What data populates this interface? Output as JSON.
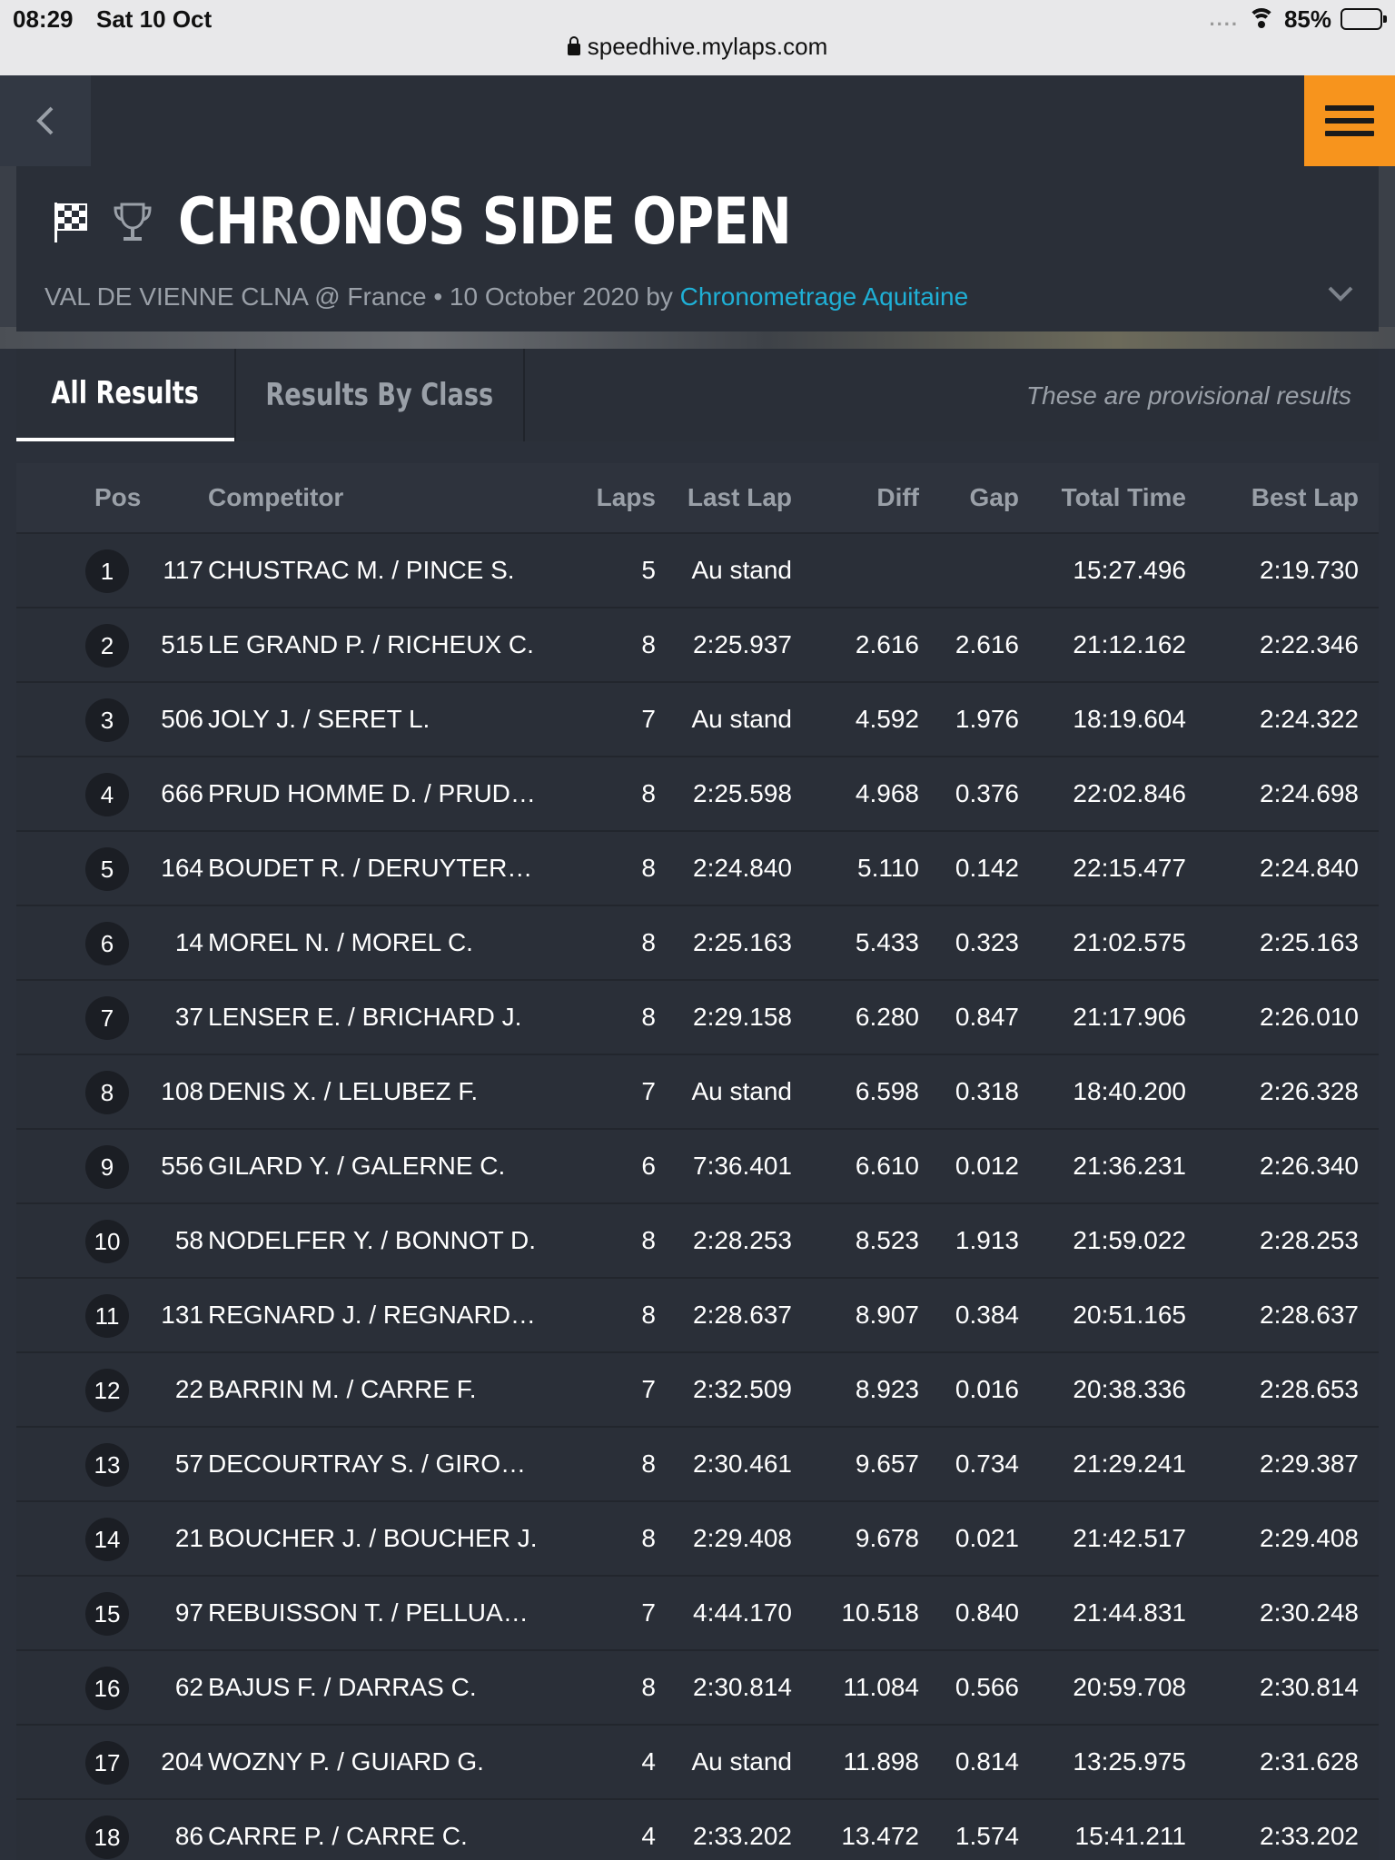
{
  "status_bar": {
    "time": "08:29",
    "date": "Sat 10 Oct",
    "signal_dots": "....",
    "battery": "85%",
    "url": "speedhive.mylaps.com"
  },
  "colors": {
    "accent_orange": "#f7941d",
    "link_cyan": "#1fb0d6",
    "panel_bg": "#2a2f38"
  },
  "event": {
    "title": "CHRONOS SIDE OPEN",
    "subtitle": "VAL DE VIENNE CLNA @ France • 10 October 2020 by ",
    "organizer": "Chronometrage Aquitaine"
  },
  "tabs": {
    "all": "All Results",
    "by_class": "Results By Class",
    "provisional_note": "These are provisional results"
  },
  "table": {
    "headers": {
      "pos": "Pos",
      "competitor": "Competitor",
      "laps": "Laps",
      "last_lap": "Last Lap",
      "diff": "Diff",
      "gap": "Gap",
      "total_time": "Total Time",
      "best_lap": "Best Lap"
    },
    "rows": [
      {
        "pos": "1",
        "num": "117",
        "competitor": "CHUSTRAC M. / PINCE S.",
        "laps": "5",
        "last_lap": "Au stand",
        "diff": "",
        "gap": "",
        "total": "15:27.496",
        "best": "2:19.730"
      },
      {
        "pos": "2",
        "num": "515",
        "competitor": "LE GRAND P. / RICHEUX C.",
        "laps": "8",
        "last_lap": "2:25.937",
        "diff": "2.616",
        "gap": "2.616",
        "total": "21:12.162",
        "best": "2:22.346"
      },
      {
        "pos": "3",
        "num": "506",
        "competitor": "JOLY J. / SERET L.",
        "laps": "7",
        "last_lap": "Au stand",
        "diff": "4.592",
        "gap": "1.976",
        "total": "18:19.604",
        "best": "2:24.322"
      },
      {
        "pos": "4",
        "num": "666",
        "competitor": "PRUD HOMME D. / PRUD…",
        "laps": "8",
        "last_lap": "2:25.598",
        "diff": "4.968",
        "gap": "0.376",
        "total": "22:02.846",
        "best": "2:24.698"
      },
      {
        "pos": "5",
        "num": "164",
        "competitor": "BOUDET R. / DERUYTER…",
        "laps": "8",
        "last_lap": "2:24.840",
        "diff": "5.110",
        "gap": "0.142",
        "total": "22:15.477",
        "best": "2:24.840"
      },
      {
        "pos": "6",
        "num": "14",
        "competitor": "MOREL N. / MOREL C.",
        "laps": "8",
        "last_lap": "2:25.163",
        "diff": "5.433",
        "gap": "0.323",
        "total": "21:02.575",
        "best": "2:25.163"
      },
      {
        "pos": "7",
        "num": "37",
        "competitor": "LENSER E. / BRICHARD J.",
        "laps": "8",
        "last_lap": "2:29.158",
        "diff": "6.280",
        "gap": "0.847",
        "total": "21:17.906",
        "best": "2:26.010"
      },
      {
        "pos": "8",
        "num": "108",
        "competitor": "DENIS X. / LELUBEZ F.",
        "laps": "7",
        "last_lap": "Au stand",
        "diff": "6.598",
        "gap": "0.318",
        "total": "18:40.200",
        "best": "2:26.328"
      },
      {
        "pos": "9",
        "num": "556",
        "competitor": "GILARD Y. / GALERNE C.",
        "laps": "6",
        "last_lap": "7:36.401",
        "diff": "6.610",
        "gap": "0.012",
        "total": "21:36.231",
        "best": "2:26.340"
      },
      {
        "pos": "10",
        "num": "58",
        "competitor": "NODELFER Y. / BONNOT D.",
        "laps": "8",
        "last_lap": "2:28.253",
        "diff": "8.523",
        "gap": "1.913",
        "total": "21:59.022",
        "best": "2:28.253"
      },
      {
        "pos": "11",
        "num": "131",
        "competitor": "REGNARD J. / REGNARD…",
        "laps": "8",
        "last_lap": "2:28.637",
        "diff": "8.907",
        "gap": "0.384",
        "total": "20:51.165",
        "best": "2:28.637"
      },
      {
        "pos": "12",
        "num": "22",
        "competitor": "BARRIN M. / CARRE F.",
        "laps": "7",
        "last_lap": "2:32.509",
        "diff": "8.923",
        "gap": "0.016",
        "total": "20:38.336",
        "best": "2:28.653"
      },
      {
        "pos": "13",
        "num": "57",
        "competitor": "DECOURTRAY S. / GIRO…",
        "laps": "8",
        "last_lap": "2:30.461",
        "diff": "9.657",
        "gap": "0.734",
        "total": "21:29.241",
        "best": "2:29.387"
      },
      {
        "pos": "14",
        "num": "21",
        "competitor": "BOUCHER J. / BOUCHER J.",
        "laps": "8",
        "last_lap": "2:29.408",
        "diff": "9.678",
        "gap": "0.021",
        "total": "21:42.517",
        "best": "2:29.408"
      },
      {
        "pos": "15",
        "num": "97",
        "competitor": "REBUISSON T. / PELLUA…",
        "laps": "7",
        "last_lap": "4:44.170",
        "diff": "10.518",
        "gap": "0.840",
        "total": "21:44.831",
        "best": "2:30.248"
      },
      {
        "pos": "16",
        "num": "62",
        "competitor": "BAJUS F. / DARRAS C.",
        "laps": "8",
        "last_lap": "2:30.814",
        "diff": "11.084",
        "gap": "0.566",
        "total": "20:59.708",
        "best": "2:30.814"
      },
      {
        "pos": "17",
        "num": "204",
        "competitor": "WOZNY P. / GUIARD G.",
        "laps": "4",
        "last_lap": "Au stand",
        "diff": "11.898",
        "gap": "0.814",
        "total": "13:25.975",
        "best": "2:31.628"
      },
      {
        "pos": "18",
        "num": "86",
        "competitor": "CARRE P. / CARRE C.",
        "laps": "4",
        "last_lap": "2:33.202",
        "diff": "13.472",
        "gap": "1.574",
        "total": "15:41.211",
        "best": "2:33.202"
      }
    ]
  }
}
